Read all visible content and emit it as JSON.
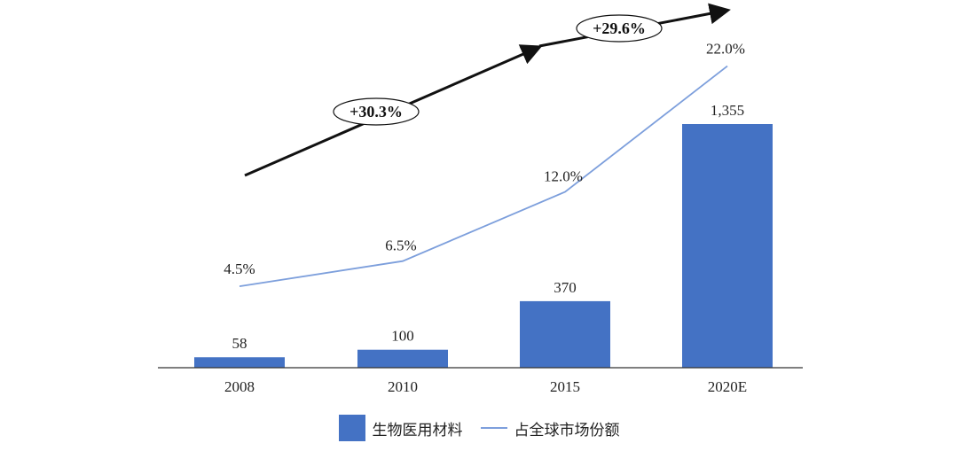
{
  "colors": {
    "bar": "#4472c4",
    "line": "#7d9fdc",
    "arrow": "#111111",
    "axis": "#333333"
  },
  "chart_data": {
    "type": "bar",
    "categories": [
      "2008",
      "2010",
      "2015",
      "2020E"
    ],
    "series": [
      {
        "name": "生物医用材料",
        "type": "bar",
        "values": [
          58,
          100,
          370,
          1355
        ],
        "labels": [
          "58",
          "100",
          "370",
          "1,355"
        ]
      },
      {
        "name": "占全球市场份额",
        "type": "line",
        "axis": "secondary",
        "values": [
          4.5,
          6.5,
          12.0,
          22.0
        ],
        "labels": [
          "4.5%",
          "6.5%",
          "12.0%",
          "22.0%"
        ]
      }
    ],
    "annotations": [
      {
        "text": "+30.3%",
        "from": "2008",
        "to": "2015"
      },
      {
        "text": "+29.6%",
        "from": "2015",
        "to": "2020E"
      }
    ],
    "grid": false,
    "legend_position": "bottom"
  }
}
